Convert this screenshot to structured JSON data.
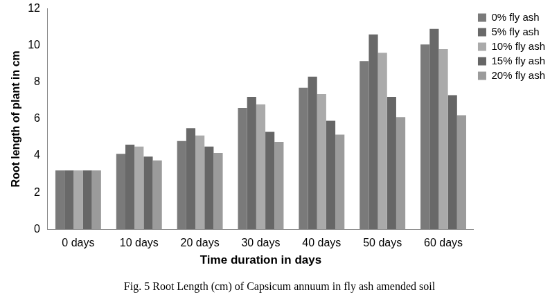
{
  "chart_data": {
    "type": "bar",
    "title": "Fig. 5 Root Length (cm) of Capsicum annuum in fly ash amended soil",
    "x_label": "Time duration in days",
    "y_label": "Root length of plant in cm",
    "categories": [
      "0 days",
      "10 days",
      "20 days",
      "30 days",
      "40 days",
      "50 days",
      "60 days"
    ],
    "series": [
      {
        "name": "0% fly ash",
        "color": "#7a7a7a",
        "values": [
          3.2,
          4.1,
          4.8,
          6.6,
          7.7,
          9.15,
          10.05
        ]
      },
      {
        "name": "5% fly ash",
        "color": "#696969",
        "values": [
          3.2,
          4.6,
          5.5,
          7.2,
          8.3,
          10.6,
          10.9
        ]
      },
      {
        "name": "10% fly ash",
        "color": "#aaaaaa",
        "values": [
          3.2,
          4.5,
          5.1,
          6.8,
          7.35,
          9.6,
          9.8
        ]
      },
      {
        "name": "15% fly ash",
        "color": "#666666",
        "values": [
          3.2,
          3.95,
          4.5,
          5.3,
          5.9,
          7.2,
          7.3
        ]
      },
      {
        "name": "20% fly ash",
        "color": "#9b9b9b",
        "values": [
          3.2,
          3.75,
          4.15,
          4.75,
          5.15,
          6.1,
          6.2
        ]
      }
    ],
    "ylim": [
      0,
      12
    ],
    "yticks": [
      0,
      2,
      4,
      6,
      8,
      10,
      12
    ],
    "grid": false,
    "legend": "right"
  }
}
